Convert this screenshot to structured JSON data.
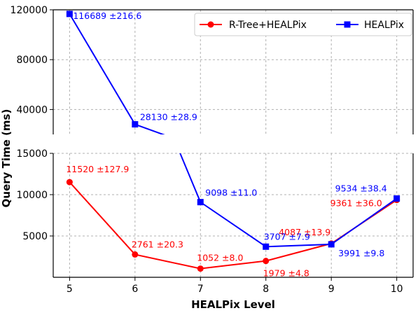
{
  "chart_data": {
    "type": "line",
    "broken_y_axis": true,
    "x": [
      5,
      6,
      7,
      8,
      9,
      10
    ],
    "xlabel": "HEALPix Level",
    "ylabel": "Query Time (ms)",
    "top_panel_ylim": [
      20000,
      120000
    ],
    "top_panel_yticks": [
      {
        "v": 40000,
        "label": "40000"
      },
      {
        "v": 80000,
        "label": "80000"
      },
      {
        "v": 120000,
        "label": "120000"
      }
    ],
    "bottom_panel_ylim": [
      0,
      15000
    ],
    "bottom_panel_yticks": [
      {
        "v": 5000,
        "label": "5000"
      },
      {
        "v": 10000,
        "label": "10000"
      },
      {
        "v": 15000,
        "label": "15000"
      }
    ],
    "xticks": [
      {
        "v": 5,
        "label": "5"
      },
      {
        "v": 6,
        "label": "6"
      },
      {
        "v": 7,
        "label": "7"
      },
      {
        "v": 8,
        "label": "8"
      },
      {
        "v": 9,
        "label": "9"
      },
      {
        "v": 10,
        "label": "10"
      }
    ],
    "grid": true,
    "legend_position": "top-right",
    "series": [
      {
        "name": "R-Tree+HEALPix",
        "color": "#ff0000",
        "marker": "circle",
        "values": [
          11520,
          2761,
          1052,
          1979,
          4087,
          9361
        ],
        "labels": [
          "11520 ±127.9",
          "2761 ±20.3",
          "1052 ±8.0",
          "1979 ±4.8",
          "4087 ±13.9",
          "9361 ±36.0"
        ]
      },
      {
        "name": "HEALPix",
        "color": "#0000ff",
        "marker": "square",
        "values": [
          116689,
          28130,
          9098,
          3707,
          3991,
          9534
        ],
        "labels": [
          "116689 ±216.6",
          "28130 ±28.9",
          "9098 ±11.0",
          "3707 ±7.9",
          "3991 ±9.8",
          "9534 ±38.4"
        ]
      }
    ]
  }
}
